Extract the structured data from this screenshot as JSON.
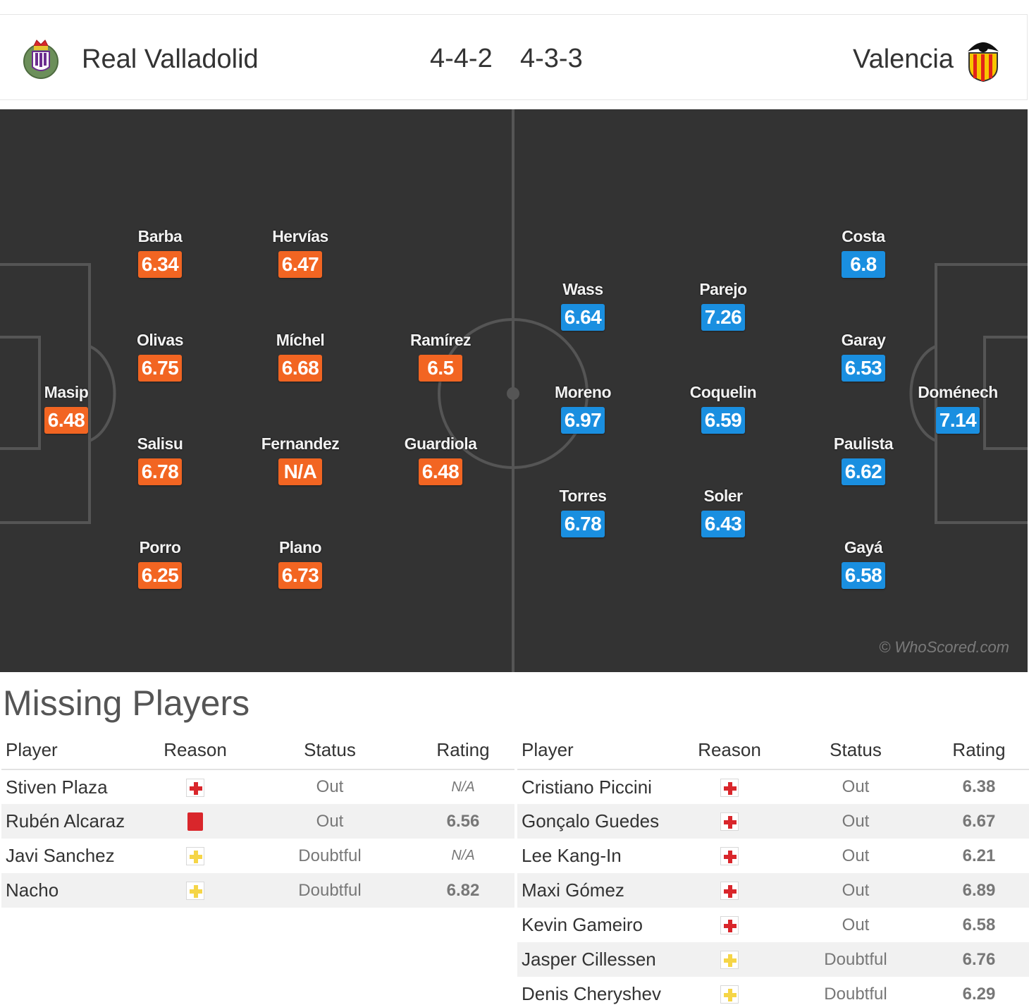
{
  "header": {
    "home_team": "Real Valladolid",
    "away_team": "Valencia",
    "home_formation": "4-4-2",
    "away_formation": "4-3-3",
    "home_crest_icon": "real-valladolid-crest-icon",
    "away_crest_icon": "valencia-crest-icon"
  },
  "pitch": {
    "watermark": "© WhoScored.com",
    "home_color": "#f26522",
    "away_color": "#1a8fe0",
    "home_players": [
      {
        "name": "Masip",
        "rating": "6.48"
      },
      {
        "name": "Barba",
        "rating": "6.34"
      },
      {
        "name": "Olivas",
        "rating": "6.75"
      },
      {
        "name": "Salisu",
        "rating": "6.78"
      },
      {
        "name": "Porro",
        "rating": "6.25"
      },
      {
        "name": "Hervías",
        "rating": "6.47"
      },
      {
        "name": "Míchel",
        "rating": "6.68"
      },
      {
        "name": "Fernandez",
        "rating": "N/A"
      },
      {
        "name": "Plano",
        "rating": "6.73"
      },
      {
        "name": "Ramírez",
        "rating": "6.5"
      },
      {
        "name": "Guardiola",
        "rating": "6.48"
      }
    ],
    "away_players": [
      {
        "name": "Wass",
        "rating": "6.64"
      },
      {
        "name": "Moreno",
        "rating": "6.97"
      },
      {
        "name": "Torres",
        "rating": "6.78"
      },
      {
        "name": "Parejo",
        "rating": "7.26"
      },
      {
        "name": "Coquelin",
        "rating": "6.59"
      },
      {
        "name": "Soler",
        "rating": "6.43"
      },
      {
        "name": "Costa",
        "rating": "6.8"
      },
      {
        "name": "Garay",
        "rating": "6.53"
      },
      {
        "name": "Paulista",
        "rating": "6.62"
      },
      {
        "name": "Gayá",
        "rating": "6.58"
      },
      {
        "name": "Doménech",
        "rating": "7.14"
      }
    ]
  },
  "missing": {
    "title": "Missing Players",
    "columns": [
      "Player",
      "Reason",
      "Status",
      "Rating"
    ],
    "home": [
      {
        "player": "Stiven Plaza",
        "reason": "injury-icon",
        "status": "Out",
        "rating": "N/A"
      },
      {
        "player": "Rubén Alcaraz",
        "reason": "red-card-icon",
        "status": "Out",
        "rating": "6.56"
      },
      {
        "player": "Javi Sanchez",
        "reason": "doubtful-icon",
        "status": "Doubtful",
        "rating": "N/A"
      },
      {
        "player": "Nacho",
        "reason": "doubtful-icon",
        "status": "Doubtful",
        "rating": "6.82"
      }
    ],
    "away": [
      {
        "player": "Cristiano Piccini",
        "reason": "injury-icon",
        "status": "Out",
        "rating": "6.38"
      },
      {
        "player": "Gonçalo Guedes",
        "reason": "injury-icon",
        "status": "Out",
        "rating": "6.67"
      },
      {
        "player": "Lee Kang-In",
        "reason": "injury-icon",
        "status": "Out",
        "rating": "6.21"
      },
      {
        "player": "Maxi Gómez",
        "reason": "injury-icon",
        "status": "Out",
        "rating": "6.89"
      },
      {
        "player": "Kevin Gameiro",
        "reason": "injury-icon",
        "status": "Out",
        "rating": "6.58"
      },
      {
        "player": "Jasper Cillessen",
        "reason": "doubtful-icon",
        "status": "Doubtful",
        "rating": "6.76"
      },
      {
        "player": "Denis Cheryshev",
        "reason": "doubtful-icon",
        "status": "Doubtful",
        "rating": "6.29"
      }
    ]
  }
}
